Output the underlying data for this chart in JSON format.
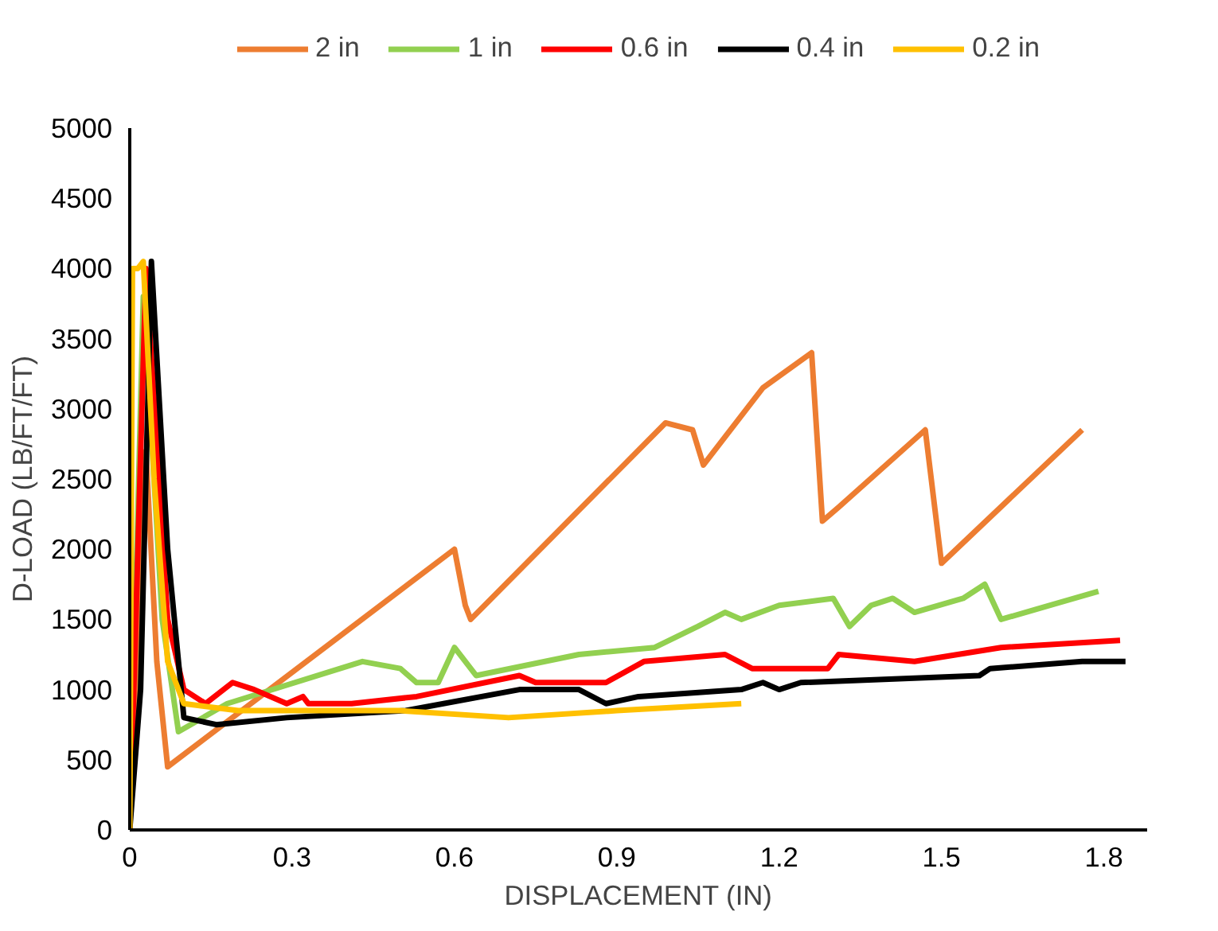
{
  "chart_data": {
    "type": "line",
    "xlabel": "DISPLACEMENT (IN)",
    "ylabel": "D-LOAD (LB/FT/FT)",
    "xlim": [
      0,
      1.88
    ],
    "ylim": [
      0,
      5000
    ],
    "xticks": [
      0,
      0.3,
      0.6,
      0.9,
      1.2,
      1.5,
      1.8
    ],
    "yticks": [
      0,
      500,
      1000,
      1500,
      2000,
      2500,
      3000,
      3500,
      4000,
      4500,
      5000
    ],
    "grid": false,
    "legend": "top",
    "marker": "none",
    "line_style": "solid",
    "series": [
      {
        "name": "2 in",
        "color": "#ed7d31",
        "x": [
          0,
          0.03,
          0.05,
          0.07,
          0.6,
          0.62,
          0.63,
          0.99,
          1.04,
          1.06,
          1.17,
          1.26,
          1.28,
          1.31,
          1.47,
          1.5,
          1.76
        ],
        "values": [
          0,
          2700,
          1200,
          450,
          2000,
          1600,
          1500,
          2900,
          2850,
          2600,
          3150,
          3400,
          2200,
          2300,
          2850,
          1900,
          2850
        ]
      },
      {
        "name": "1 in",
        "color": "#92d050",
        "x": [
          0,
          0.025,
          0.06,
          0.09,
          0.18,
          0.43,
          0.5,
          0.53,
          0.57,
          0.6,
          0.64,
          0.83,
          0.97,
          1.05,
          1.1,
          1.13,
          1.2,
          1.3,
          1.33,
          1.37,
          1.41,
          1.45,
          1.54,
          1.58,
          1.61,
          1.79
        ],
        "values": [
          0,
          3800,
          1500,
          700,
          900,
          1200,
          1150,
          1050,
          1050,
          1300,
          1100,
          1250,
          1300,
          1450,
          1550,
          1500,
          1600,
          1650,
          1450,
          1600,
          1650,
          1550,
          1650,
          1750,
          1500,
          1700
        ]
      },
      {
        "name": "0.6 in",
        "color": "#ff0000",
        "x": [
          0,
          0.03,
          0.07,
          0.1,
          0.14,
          0.19,
          0.23,
          0.29,
          0.32,
          0.33,
          0.41,
          0.53,
          0.72,
          0.75,
          0.84,
          0.88,
          0.95,
          1.1,
          1.15,
          1.29,
          1.31,
          1.45,
          1.61,
          1.83
        ],
        "values": [
          0,
          4000,
          1500,
          1000,
          900,
          1050,
          1000,
          900,
          950,
          900,
          900,
          950,
          1100,
          1050,
          1050,
          1050,
          1200,
          1250,
          1150,
          1150,
          1250,
          1200,
          1300,
          1350
        ]
      },
      {
        "name": "0.4 in",
        "color": "#000000",
        "x": [
          0,
          0.02,
          0.04,
          0.07,
          0.1,
          0.16,
          0.29,
          0.51,
          0.72,
          0.83,
          0.88,
          0.94,
          1.13,
          1.17,
          1.2,
          1.24,
          1.57,
          1.59,
          1.76,
          1.84
        ],
        "values": [
          0,
          1000,
          4050,
          2000,
          800,
          750,
          800,
          850,
          1000,
          1000,
          900,
          950,
          1000,
          1050,
          1000,
          1050,
          1100,
          1150,
          1200,
          1200
        ]
      },
      {
        "name": "0.2 in",
        "color": "#ffc000",
        "x": [
          0,
          0.005,
          0.015,
          0.025,
          0.045,
          0.07,
          0.1,
          0.2,
          0.5,
          0.7,
          0.9,
          1.13
        ],
        "values": [
          0,
          4000,
          4000,
          4050,
          2500,
          1200,
          900,
          850,
          850,
          800,
          850,
          900
        ]
      }
    ]
  }
}
